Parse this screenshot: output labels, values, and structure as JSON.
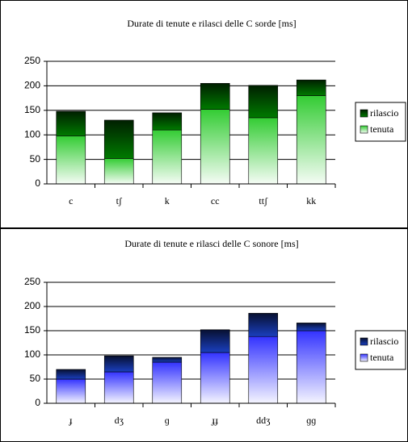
{
  "chart_data": [
    {
      "type": "stacked-bar",
      "title": "Durate di tenute e rilasci delle C sorde [ms]",
      "categories": [
        "c",
        "tʃ",
        "k",
        "cc",
        "ttʃ",
        "kk"
      ],
      "series": [
        {
          "name": "tenuta",
          "color": "#33cc33",
          "values": [
            98,
            52,
            110,
            152,
            135,
            180
          ]
        },
        {
          "name": "rilascio",
          "color": "#007a00",
          "values": [
            50,
            78,
            35,
            53,
            66,
            32
          ]
        }
      ],
      "ylim": [
        0,
        250
      ],
      "yticks": [
        0,
        50,
        100,
        150,
        200,
        250
      ],
      "grid": true,
      "legend": "right"
    },
    {
      "type": "stacked-bar",
      "title": "Durate di tenute e rilasci delle C sonore [ms]",
      "categories": [
        "ɟ",
        "dʒ",
        "ɡ",
        "ɟɟ",
        "ddʒ",
        "ɡɡ"
      ],
      "series": [
        {
          "name": "tenuta",
          "color": "#3333ff",
          "values": [
            50,
            65,
            85,
            105,
            138,
            150
          ]
        },
        {
          "name": "rilascio",
          "color": "#1a3fbf",
          "values": [
            20,
            33,
            10,
            47,
            48,
            16
          ]
        }
      ],
      "ylim": [
        0,
        250
      ],
      "yticks": [
        0,
        50,
        100,
        150,
        200,
        250
      ],
      "grid": true,
      "legend": "right"
    }
  ]
}
